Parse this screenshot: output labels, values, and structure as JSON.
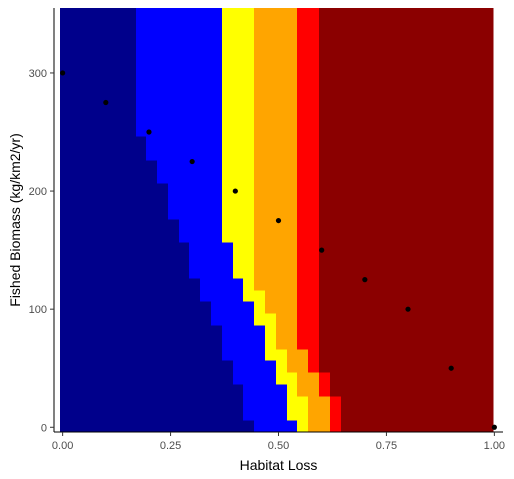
{
  "chart_data": {
    "type": "heatmap",
    "title": "",
    "xlabel": "Habitat Loss",
    "ylabel": "Fished Biomass (kg/km2/yr)",
    "xlim": [
      -0.02,
      1.02
    ],
    "ylim": [
      -4,
      355
    ],
    "x_ticks": [
      0,
      0.25,
      0.5,
      0.75,
      1
    ],
    "x_tick_labels": [
      "0.00",
      "0.25",
      "0.50",
      "0.75",
      "1.00"
    ],
    "y_ticks": [
      0,
      100,
      200,
      300
    ],
    "y_tick_labels": [
      "0",
      "100",
      "200",
      "300"
    ],
    "colors": {
      "navy": "#00008b",
      "blue": "#0000ff",
      "yellow": "#ffff00",
      "orange": "#ffa500",
      "red": "#ff0000",
      "darkred": "#8b0000"
    },
    "tile_grid": {
      "x_min": -0.005,
      "x_max": 1.005,
      "y_min": -3,
      "y_max": 355,
      "tile_width": 0.025,
      "tile_height": 10
    },
    "band_edges": [
      0.175,
      0.375,
      0.45,
      0.55,
      0.6
    ],
    "band_colors": [
      "navy",
      "blue",
      "yellow",
      "orange",
      "red",
      "darkred"
    ],
    "diagonal_shift": {
      "y_intercept": 342,
      "slope": -480
    },
    "points": [
      {
        "x": 0.0,
        "y": 300
      },
      {
        "x": 0.1,
        "y": 275
      },
      {
        "x": 0.2,
        "y": 250
      },
      {
        "x": 0.3,
        "y": 225
      },
      {
        "x": 0.4,
        "y": 200
      },
      {
        "x": 0.5,
        "y": 175
      },
      {
        "x": 0.6,
        "y": 150
      },
      {
        "x": 0.7,
        "y": 125
      },
      {
        "x": 0.8,
        "y": 100
      },
      {
        "x": 0.9,
        "y": 50
      },
      {
        "x": 1.0,
        "y": 0
      }
    ]
  }
}
